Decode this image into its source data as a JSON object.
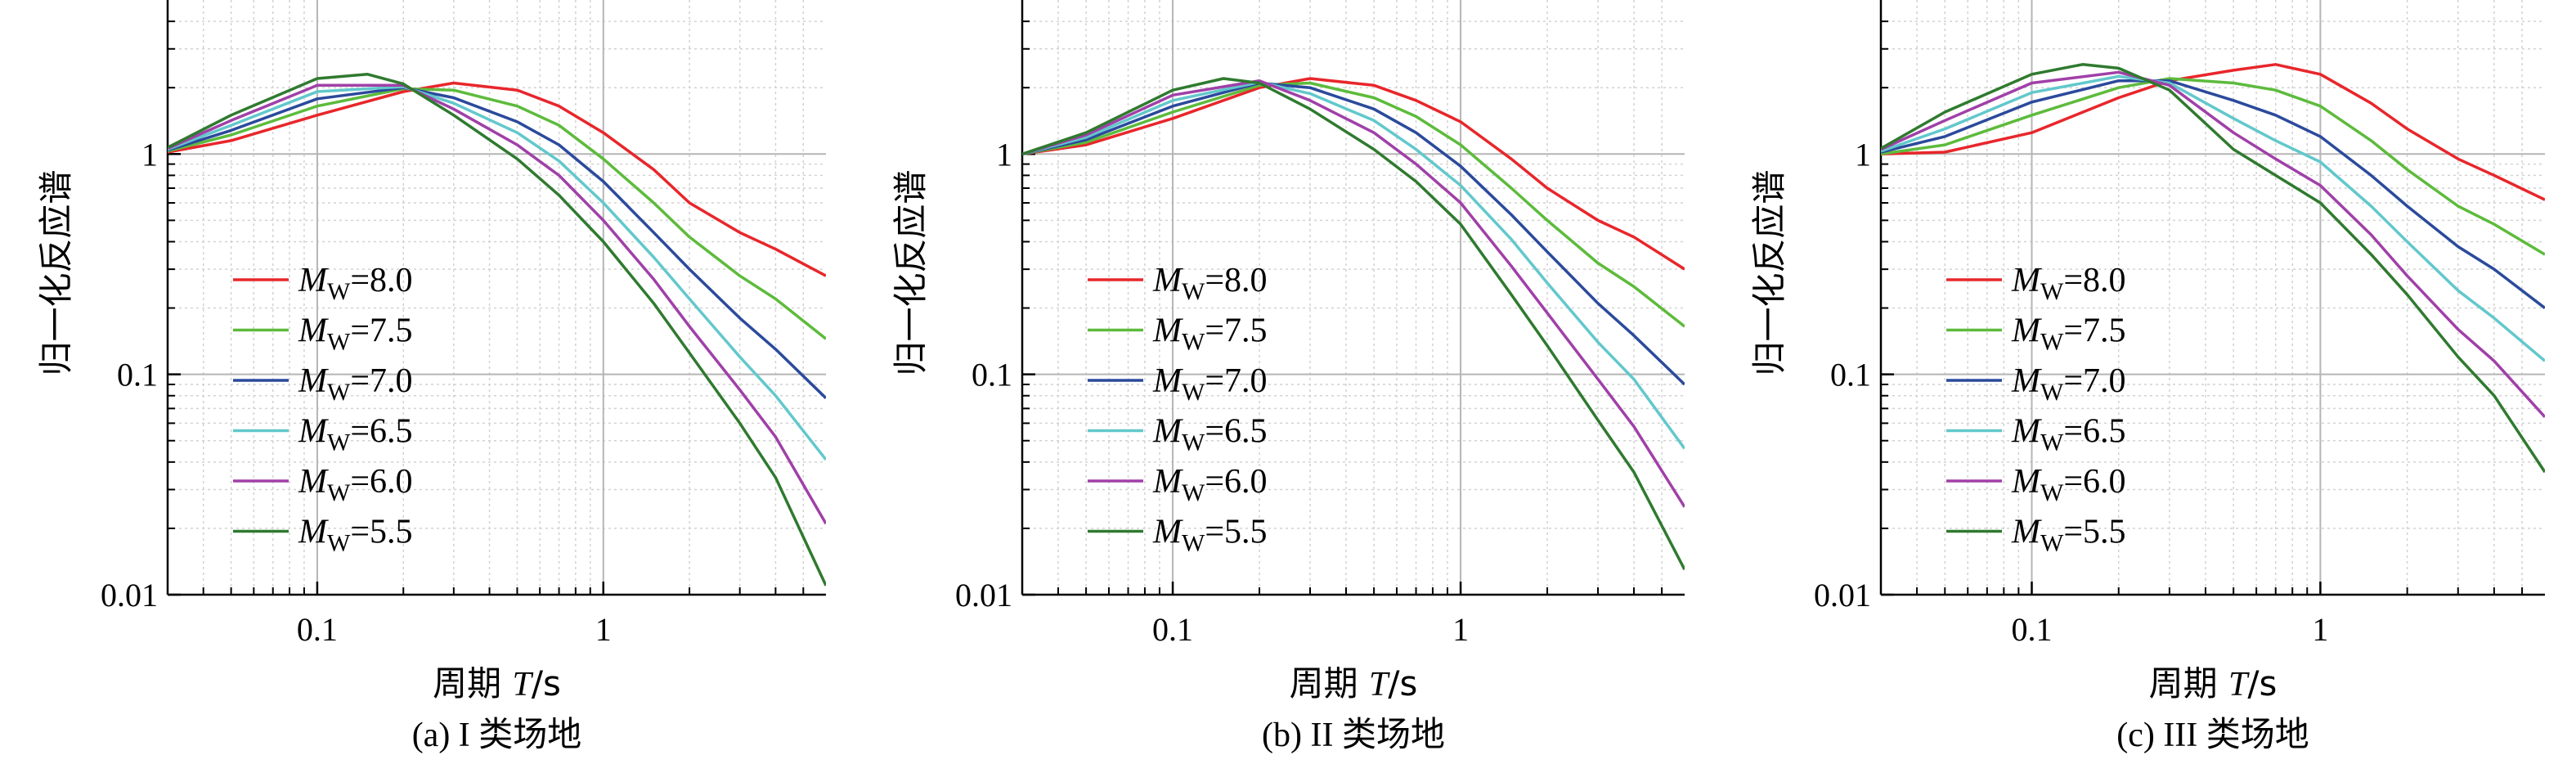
{
  "chart_data": [
    {
      "type": "line",
      "caption": "(a) I 类场地",
      "xlabel": "周期 T/s",
      "ylabel": "归一化反应谱",
      "xscale": "log",
      "yscale": "log",
      "xlim": [
        0.03,
        6
      ],
      "ylim": [
        0.01,
        5
      ],
      "xticks": [
        {
          "v": 0.1,
          "label": "0.1"
        },
        {
          "v": 1,
          "label": "1"
        }
      ],
      "yticks": [
        {
          "v": 0.01,
          "label": "0.01"
        },
        {
          "v": 0.1,
          "label": "0.1"
        },
        {
          "v": 1,
          "label": "1"
        }
      ],
      "grid": true,
      "legend_position": "lower-left",
      "series": [
        {
          "legend_prefix": "M",
          "legend_sub": "W",
          "legend_value": "=8.0",
          "color": "#e8262b",
          "x": [
            0.03,
            0.05,
            0.1,
            0.2,
            0.3,
            0.5,
            0.7,
            1,
            1.5,
            2,
            3,
            4,
            6
          ],
          "y": [
            1.02,
            1.15,
            1.5,
            1.92,
            2.1,
            1.95,
            1.65,
            1.25,
            0.85,
            0.6,
            0.44,
            0.37,
            0.28
          ]
        },
        {
          "legend_prefix": "M",
          "legend_sub": "W",
          "legend_value": "=7.5",
          "color": "#5dbb3c",
          "x": [
            0.03,
            0.05,
            0.1,
            0.2,
            0.3,
            0.5,
            0.7,
            1,
            1.5,
            2,
            3,
            4,
            6
          ],
          "y": [
            1.03,
            1.22,
            1.65,
            1.98,
            1.95,
            1.65,
            1.35,
            0.95,
            0.6,
            0.42,
            0.28,
            0.22,
            0.145
          ]
        },
        {
          "legend_prefix": "M",
          "legend_sub": "W",
          "legend_value": "=7.0",
          "color": "#2b4a9c",
          "x": [
            0.03,
            0.05,
            0.1,
            0.2,
            0.3,
            0.5,
            0.7,
            1,
            1.5,
            2,
            3,
            4,
            6
          ],
          "y": [
            1.04,
            1.28,
            1.78,
            2.0,
            1.8,
            1.4,
            1.1,
            0.75,
            0.44,
            0.3,
            0.18,
            0.13,
            0.078
          ]
        },
        {
          "legend_prefix": "M",
          "legend_sub": "W",
          "legend_value": "=6.5",
          "color": "#62c8cc",
          "x": [
            0.03,
            0.05,
            0.1,
            0.2,
            0.3,
            0.5,
            0.7,
            1,
            1.5,
            2,
            3,
            4,
            6
          ],
          "y": [
            1.05,
            1.35,
            1.92,
            2.02,
            1.7,
            1.25,
            0.93,
            0.6,
            0.34,
            0.22,
            0.12,
            0.08,
            0.041
          ]
        },
        {
          "legend_prefix": "M",
          "legend_sub": "W",
          "legend_value": "=6.0",
          "color": "#a040a8",
          "x": [
            0.03,
            0.05,
            0.1,
            0.2,
            0.3,
            0.5,
            0.7,
            1,
            1.5,
            2,
            3,
            4,
            6
          ],
          "y": [
            1.06,
            1.42,
            2.05,
            2.05,
            1.6,
            1.1,
            0.8,
            0.5,
            0.27,
            0.165,
            0.085,
            0.052,
            0.021
          ]
        },
        {
          "legend_prefix": "M",
          "legend_sub": "W",
          "legend_value": "=5.5",
          "color": "#2f7a2f",
          "x": [
            0.03,
            0.05,
            0.1,
            0.15,
            0.2,
            0.3,
            0.5,
            0.7,
            1,
            1.5,
            2,
            3,
            4,
            6
          ],
          "y": [
            1.07,
            1.5,
            2.2,
            2.3,
            2.08,
            1.5,
            0.95,
            0.65,
            0.4,
            0.21,
            0.125,
            0.06,
            0.034,
            0.011
          ]
        }
      ]
    },
    {
      "type": "line",
      "caption": "(b) II 类场地",
      "xlabel": "周期 T/s",
      "ylabel": "归一化反应谱",
      "xscale": "log",
      "yscale": "log",
      "xlim": [
        0.03,
        6
      ],
      "ylim": [
        0.01,
        5
      ],
      "xticks": [
        {
          "v": 0.1,
          "label": "0.1"
        },
        {
          "v": 1,
          "label": "1"
        }
      ],
      "yticks": [
        {
          "v": 0.01,
          "label": "0.01"
        },
        {
          "v": 0.1,
          "label": "0.1"
        },
        {
          "v": 1,
          "label": "1"
        }
      ],
      "grid": true,
      "legend_position": "lower-left",
      "series": [
        {
          "legend_prefix": "M",
          "legend_sub": "W",
          "legend_value": "=8.0",
          "color": "#e8262b",
          "x": [
            0.03,
            0.05,
            0.1,
            0.2,
            0.3,
            0.5,
            0.7,
            1,
            1.5,
            2,
            3,
            4,
            6
          ],
          "y": [
            1.0,
            1.1,
            1.45,
            2.0,
            2.2,
            2.05,
            1.75,
            1.4,
            0.95,
            0.7,
            0.5,
            0.42,
            0.3
          ]
        },
        {
          "legend_prefix": "M",
          "legend_sub": "W",
          "legend_value": "=7.5",
          "color": "#5dbb3c",
          "x": [
            0.03,
            0.05,
            0.1,
            0.2,
            0.3,
            0.5,
            0.7,
            1,
            1.5,
            2,
            3,
            4,
            6
          ],
          "y": [
            1.0,
            1.13,
            1.55,
            2.05,
            2.1,
            1.8,
            1.48,
            1.1,
            0.7,
            0.5,
            0.32,
            0.25,
            0.165
          ]
        },
        {
          "legend_prefix": "M",
          "legend_sub": "W",
          "legend_value": "=7.0",
          "color": "#2b4a9c",
          "x": [
            0.03,
            0.05,
            0.1,
            0.2,
            0.3,
            0.5,
            0.7,
            1,
            1.5,
            2,
            3,
            4,
            6
          ],
          "y": [
            1.0,
            1.16,
            1.65,
            2.1,
            2.0,
            1.6,
            1.25,
            0.88,
            0.53,
            0.36,
            0.21,
            0.15,
            0.09
          ]
        },
        {
          "legend_prefix": "M",
          "legend_sub": "W",
          "legend_value": "=6.5",
          "color": "#62c8cc",
          "x": [
            0.03,
            0.05,
            0.1,
            0.2,
            0.3,
            0.5,
            0.7,
            1,
            1.5,
            2,
            3,
            4,
            6
          ],
          "y": [
            1.0,
            1.19,
            1.75,
            2.12,
            1.88,
            1.42,
            1.05,
            0.72,
            0.41,
            0.26,
            0.14,
            0.095,
            0.046
          ]
        },
        {
          "legend_prefix": "M",
          "legend_sub": "W",
          "legend_value": "=6.0",
          "color": "#a040a8",
          "x": [
            0.03,
            0.05,
            0.1,
            0.2,
            0.3,
            0.5,
            0.7,
            1,
            1.5,
            2,
            3,
            4,
            6
          ],
          "y": [
            1.0,
            1.22,
            1.85,
            2.15,
            1.75,
            1.25,
            0.9,
            0.6,
            0.31,
            0.19,
            0.095,
            0.058,
            0.025
          ]
        },
        {
          "legend_prefix": "M",
          "legend_sub": "W",
          "legend_value": "=5.5",
          "color": "#2f7a2f",
          "x": [
            0.03,
            0.05,
            0.1,
            0.15,
            0.2,
            0.3,
            0.5,
            0.7,
            1,
            1.5,
            2,
            3,
            4,
            6
          ],
          "y": [
            1.0,
            1.25,
            1.95,
            2.2,
            2.1,
            1.6,
            1.05,
            0.75,
            0.48,
            0.23,
            0.135,
            0.062,
            0.036,
            0.013
          ]
        }
      ]
    },
    {
      "type": "line",
      "caption": "(c) III 类场地",
      "xlabel": "周期 T/s",
      "ylabel": "归一化反应谱",
      "xscale": "log",
      "yscale": "log",
      "xlim": [
        0.03,
        6
      ],
      "ylim": [
        0.01,
        5
      ],
      "xticks": [
        {
          "v": 0.1,
          "label": "0.1"
        },
        {
          "v": 1,
          "label": "1"
        }
      ],
      "yticks": [
        {
          "v": 0.01,
          "label": "0.01"
        },
        {
          "v": 0.1,
          "label": "0.1"
        },
        {
          "v": 1,
          "label": "1"
        }
      ],
      "grid": true,
      "legend_position": "lower-left",
      "series": [
        {
          "legend_prefix": "M",
          "legend_sub": "W",
          "legend_value": "=8.0",
          "color": "#e8262b",
          "x": [
            0.03,
            0.05,
            0.1,
            0.2,
            0.3,
            0.5,
            0.7,
            1,
            1.5,
            2,
            3,
            4,
            6
          ],
          "y": [
            1.0,
            1.02,
            1.25,
            1.8,
            2.15,
            2.4,
            2.55,
            2.3,
            1.7,
            1.3,
            0.95,
            0.8,
            0.62
          ]
        },
        {
          "legend_prefix": "M",
          "legend_sub": "W",
          "legend_value": "=7.5",
          "color": "#5dbb3c",
          "x": [
            0.03,
            0.05,
            0.1,
            0.2,
            0.3,
            0.5,
            0.7,
            1,
            1.5,
            2,
            3,
            4,
            6
          ],
          "y": [
            1.0,
            1.1,
            1.5,
            2.0,
            2.2,
            2.1,
            1.95,
            1.65,
            1.15,
            0.85,
            0.58,
            0.48,
            0.35
          ]
        },
        {
          "legend_prefix": "M",
          "legend_sub": "W",
          "legend_value": "=7.0",
          "color": "#2b4a9c",
          "x": [
            0.03,
            0.05,
            0.1,
            0.2,
            0.3,
            0.5,
            0.7,
            1,
            1.5,
            2,
            3,
            4,
            6
          ],
          "y": [
            1.02,
            1.2,
            1.72,
            2.15,
            2.15,
            1.75,
            1.5,
            1.2,
            0.8,
            0.58,
            0.38,
            0.3,
            0.2
          ]
        },
        {
          "legend_prefix": "M",
          "legend_sub": "W",
          "legend_value": "=6.5",
          "color": "#62c8cc",
          "x": [
            0.03,
            0.05,
            0.1,
            0.2,
            0.3,
            0.5,
            0.7,
            1,
            1.5,
            2,
            3,
            4,
            6
          ],
          "y": [
            1.03,
            1.3,
            1.9,
            2.25,
            2.1,
            1.45,
            1.15,
            0.92,
            0.58,
            0.4,
            0.24,
            0.18,
            0.115
          ]
        },
        {
          "legend_prefix": "M",
          "legend_sub": "W",
          "legend_value": "=6.0",
          "color": "#a040a8",
          "x": [
            0.03,
            0.05,
            0.1,
            0.2,
            0.3,
            0.5,
            0.7,
            1,
            1.5,
            2,
            3,
            4,
            6
          ],
          "y": [
            1.05,
            1.42,
            2.1,
            2.35,
            2.05,
            1.25,
            0.95,
            0.72,
            0.43,
            0.28,
            0.16,
            0.115,
            0.064
          ]
        },
        {
          "legend_prefix": "M",
          "legend_sub": "W",
          "legend_value": "=5.5",
          "color": "#2f7a2f",
          "x": [
            0.03,
            0.05,
            0.1,
            0.15,
            0.2,
            0.3,
            0.5,
            0.7,
            1,
            1.5,
            2,
            3,
            4,
            6
          ],
          "y": [
            1.06,
            1.55,
            2.3,
            2.55,
            2.45,
            1.95,
            1.05,
            0.8,
            0.6,
            0.35,
            0.23,
            0.12,
            0.08,
            0.036
          ]
        }
      ]
    }
  ]
}
